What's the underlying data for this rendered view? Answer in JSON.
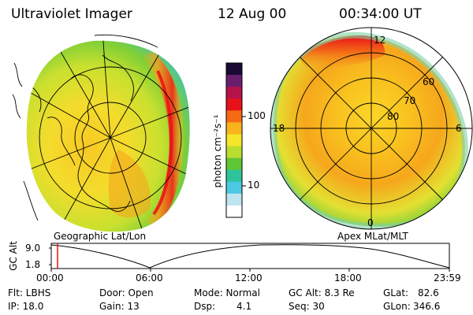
{
  "header": {
    "title": "Ultraviolet Imager",
    "date": "12 Aug 00",
    "time": "00:34:00 UT"
  },
  "left_map": {
    "label": "Geographic Lat/Lon"
  },
  "right_map": {
    "label": "Apex MLat/MLT",
    "mlt_labels": {
      "top": "12",
      "left": "18",
      "right": "6",
      "bottom": "0"
    },
    "lat_labels": [
      "60",
      "70",
      "80"
    ]
  },
  "colorbar": {
    "unit_label": "photon cm⁻²s⁻¹",
    "tick_labels": [
      "100",
      "10"
    ],
    "colors": [
      "#1a0a33",
      "#6a1f6e",
      "#b5134a",
      "#e8101a",
      "#f56a12",
      "#f9b31c",
      "#f5e62a",
      "#b9de30",
      "#5fc735",
      "#2ec39b",
      "#4cc8e4",
      "#bde5ef",
      "#ffffff"
    ]
  },
  "timeline": {
    "axis_label": "GC Alt",
    "ytick_top": "9.0",
    "ytick_bottom": "1.8",
    "xticks": [
      "00:00",
      "06:00",
      "12:00",
      "18:00",
      "23:59"
    ]
  },
  "status": {
    "filter": "Flt: LBHS",
    "ip": "IP: 18.0",
    "door": "Door: Open",
    "gain": "Gain: 13",
    "mode": "Mode: Normal",
    "dsp": "Dsp:",
    "dsp_value": "4.1",
    "gc_alt": "GC Alt: 8.3 Re",
    "seq": "Seq: 30",
    "glat": "GLat:",
    "glat_value": "82.6",
    "glon": "GLon:",
    "glon_value": "346.6"
  }
}
